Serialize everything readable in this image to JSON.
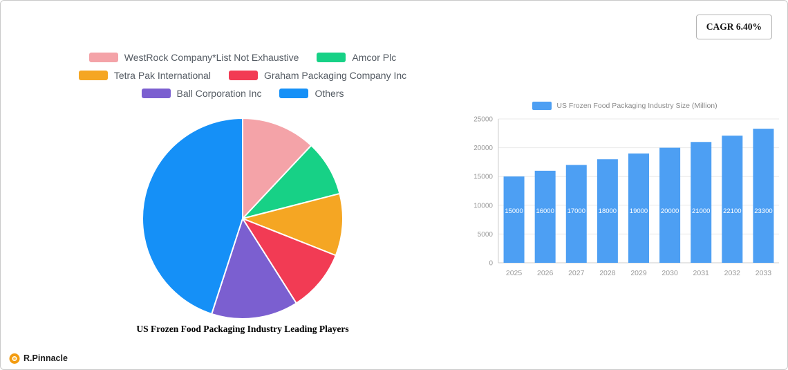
{
  "cagr_label": "CAGR 6.40%",
  "logo": {
    "text": "R.Pinnacle"
  },
  "brand_color": "#f39c12",
  "chart_data": [
    {
      "type": "pie",
      "title": "US Frozen Food Packaging Industry Leading Players",
      "legend_position": "top",
      "labels": [
        "WestRock Company*List Not Exhaustive",
        "Amcor Plc",
        "Tetra Pak International",
        "Graham Packaging Company Inc",
        "Ball Corporation Inc",
        "Others"
      ],
      "values": [
        12,
        9,
        10,
        10,
        14,
        45
      ],
      "colors": [
        "#f4a3a8",
        "#17d186",
        "#f5a623",
        "#f23b54",
        "#7b5fd0",
        "#1590f7"
      ]
    },
    {
      "type": "bar",
      "legend": "US Frozen Food Packaging Industry Size (Million)",
      "categories": [
        "2025",
        "2026",
        "2027",
        "2028",
        "2029",
        "2030",
        "2031",
        "2032",
        "2033"
      ],
      "values": [
        15000,
        16000,
        17000,
        18000,
        19000,
        20000,
        21000,
        22100,
        23300
      ],
      "ylim": [
        0,
        25000
      ],
      "yticks": [
        0,
        5000,
        10000,
        15000,
        20000,
        25000
      ],
      "bar_color": "#4d9ff3",
      "grid": true,
      "legend_position": "top"
    }
  ]
}
